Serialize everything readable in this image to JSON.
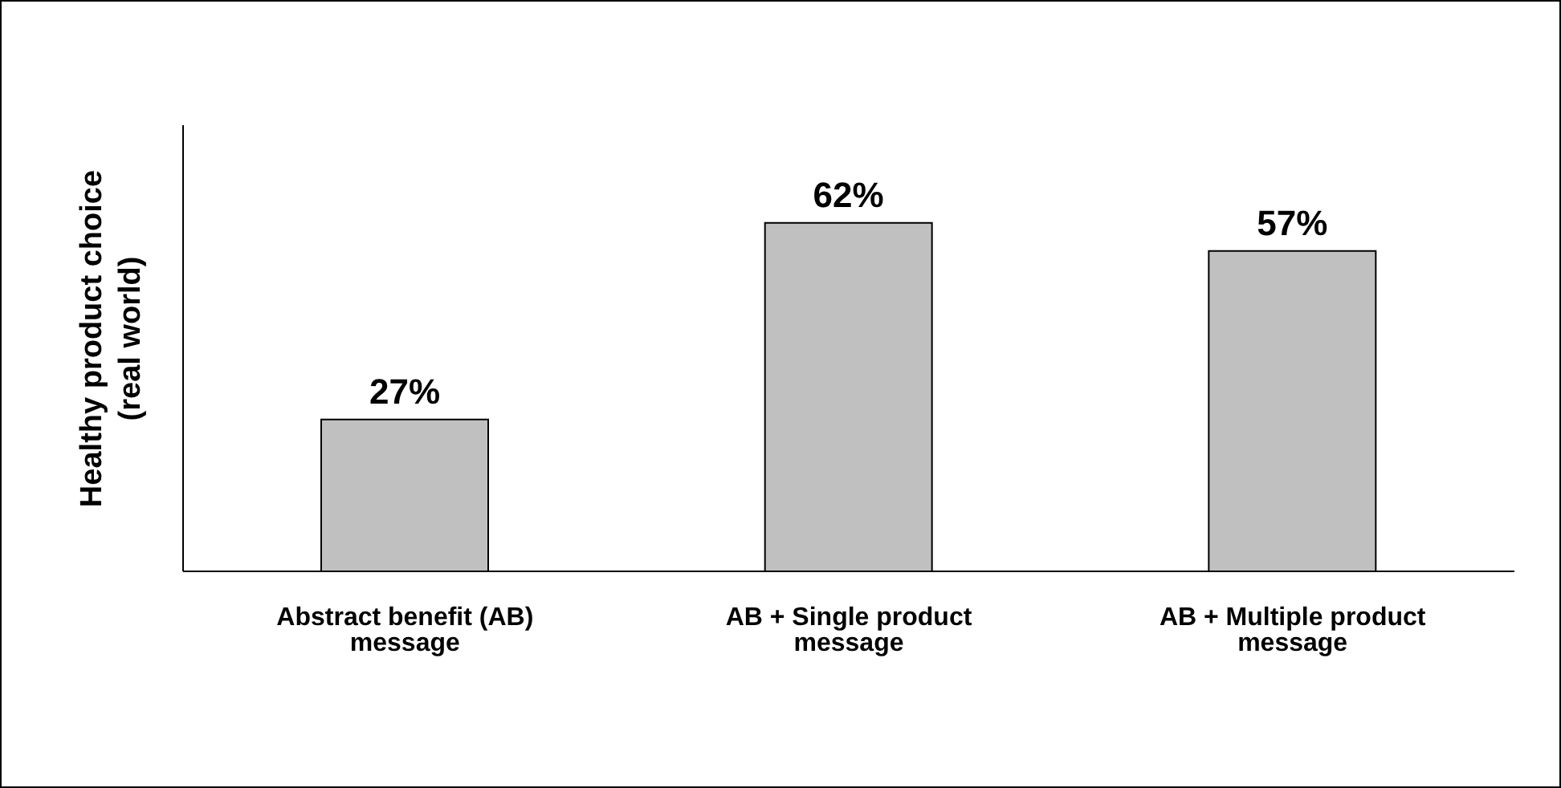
{
  "chart_data": {
    "type": "bar",
    "ylabel": "Healthy product choice (real world)",
    "categories": [
      "Abstract benefit (AB) message",
      "AB + Single product message",
      "AB + Multiple product message"
    ],
    "values": [
      27,
      62,
      57
    ],
    "value_labels": [
      "27%",
      "62%",
      "57%"
    ],
    "color": "#c0c0c0",
    "tick_labels": "x",
    "grid": false
  }
}
